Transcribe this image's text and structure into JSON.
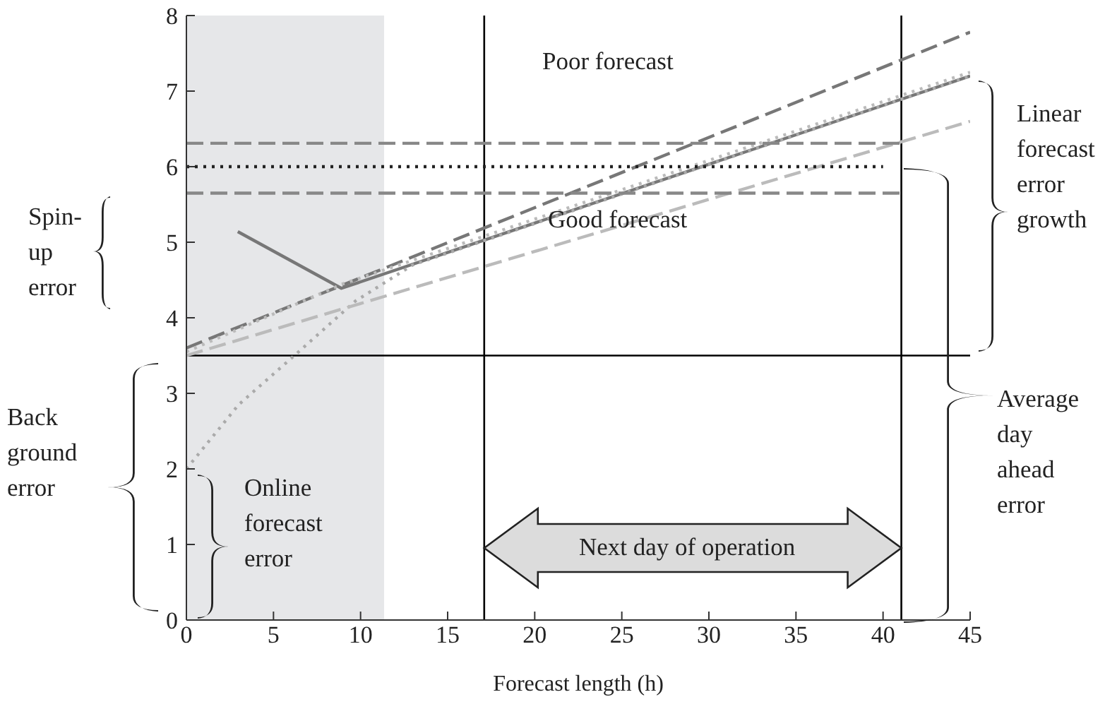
{
  "chart_data": {
    "type": "line",
    "xlabel": "Forecast length (h)",
    "xlim": [
      0,
      45
    ],
    "xticks": [
      0,
      5,
      10,
      15,
      20,
      25,
      30,
      35,
      40,
      45
    ],
    "ylim": [
      0,
      8
    ],
    "yticks": [
      0,
      1,
      2,
      3,
      4,
      5,
      6,
      7,
      8
    ],
    "series": [
      {
        "color": "#777777",
        "line_style": "dashed",
        "x": [
          0,
          45
        ],
        "values": [
          3.6,
          7.78
        ]
      },
      {
        "color": "#777777",
        "line_style": "solid",
        "x": [
          2.95,
          8.9,
          45
        ],
        "values": [
          5.14,
          4.39,
          7.2
        ]
      },
      {
        "color": "#aaaaaa",
        "line_style": "dotted",
        "x": [
          0,
          3,
          6.2,
          9.7,
          13,
          45
        ],
        "values": [
          2,
          2.85,
          3.5,
          4.22,
          4.7,
          7.2
        ]
      },
      {
        "color": "#bbbbbb",
        "line_style": "dotted",
        "x": [
          0,
          9,
          45
        ],
        "values": [
          3.55,
          4.45,
          7.25
        ]
      },
      {
        "color": "#bbbbbb",
        "line_style": "dashed",
        "x": [
          0,
          45
        ],
        "values": [
          3.5,
          6.6
        ]
      },
      {
        "color": "#888888",
        "line_style": "dashed",
        "x": [
          0,
          41
        ],
        "values": [
          6.31,
          6.31
        ]
      },
      {
        "color": "#888888",
        "line_style": "dashed",
        "x": [
          0,
          41
        ],
        "values": [
          5.65,
          5.65
        ]
      },
      {
        "color": "#222222",
        "line_style": "dotted",
        "x": [
          0,
          40
        ],
        "values": [
          6,
          6
        ]
      }
    ],
    "ref_lines": [
      {
        "axis": "y",
        "value": 3.5,
        "color": "#000000"
      },
      {
        "axis": "x",
        "value": 17.1,
        "color": "#000000"
      },
      {
        "axis": "x",
        "value": 41.05,
        "color": "#000000"
      }
    ],
    "bands": [
      {
        "axis": "x",
        "from": 0,
        "to": 11.35,
        "color": "#e6e7e9"
      }
    ],
    "annotations": [
      "Poor forecast",
      "Good forecast",
      "Next day of operation",
      "Spin-up error",
      "Back ground error",
      "Online forecast error",
      "Linear forecast error growth",
      "Average day ahead error"
    ]
  }
}
